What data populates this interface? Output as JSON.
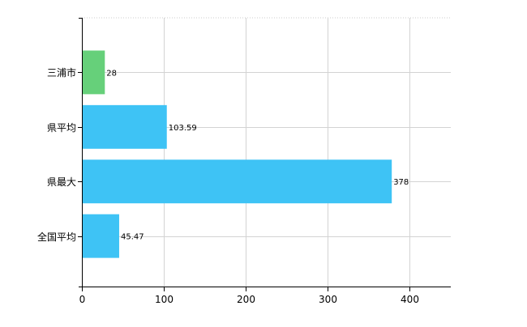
{
  "chart_data": {
    "type": "bar",
    "orientation": "horizontal",
    "categories": [
      "三浦市",
      "県平均",
      "県最大",
      "全国平均"
    ],
    "values": [
      28,
      103.59,
      378,
      45.47
    ],
    "data_labels": [
      "28",
      "103.59",
      "378",
      "45.47"
    ],
    "bar_colors": [
      "#66D07A",
      "#3EC3F5",
      "#3EC3F5",
      "#3EC3F5"
    ],
    "xlim": [
      0,
      450
    ],
    "xticks": [
      0,
      100,
      200,
      300,
      400
    ],
    "xtick_labels": [
      "0",
      "100",
      "200",
      "300",
      "400"
    ],
    "grid": true,
    "title": "",
    "xlabel": "",
    "ylabel": ""
  }
}
